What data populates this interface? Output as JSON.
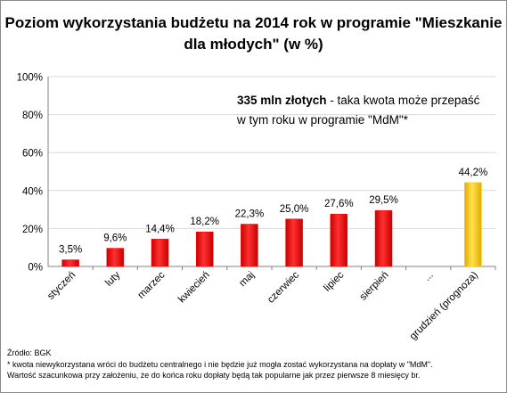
{
  "title": "Poziom wykorzystania budżetu na 2014 rok w programie \"Mieszkanie\ndla młodych\" (w %)",
  "annotation": {
    "bold": "335 mln złotych",
    "line1_rest": " - taka kwota może przepaść",
    "line2": "w tym roku w programie  \"MdM\"*"
  },
  "notes": [
    "Źródło: BGK",
    "* kwota niewykorzystana wróci do budżetu centralnego i nie będzie już mogła zostać wykorzystana na dopłaty w \"MdM\".",
    "Wartość szacunkowa przy założeniu, że do końca roku dopłaty będą tak popularne jak przez pierwsze 8 miesięcy br."
  ],
  "colors": {
    "bar": "#ff0000",
    "bar_highlight": "#ffcc00",
    "gridline": "#d9d9d9",
    "axis": "#808080"
  },
  "chart_data": {
    "type": "bar",
    "title": "Poziom wykorzystania budżetu na 2014 rok w programie \"Mieszkanie dla młodych\" (w %)",
    "categories": [
      "styczeń",
      "luty",
      "marzec",
      "kwiecień",
      "maj",
      "czerwiec",
      "lipiec",
      "sierpień",
      "...",
      "grudzień (prognoza)"
    ],
    "values": [
      3.5,
      9.6,
      14.4,
      18.2,
      22.3,
      25.0,
      27.6,
      29.5,
      null,
      44.2
    ],
    "data_labels": [
      "3,5%",
      "9,6%",
      "14,4%",
      "18,2%",
      "22,3%",
      "25,0%",
      "27,6%",
      "29,5%",
      "",
      "44,2%"
    ],
    "highlight": [
      false,
      false,
      false,
      false,
      false,
      false,
      false,
      false,
      false,
      true
    ],
    "yticks": [
      0,
      20,
      40,
      60,
      80,
      100
    ],
    "ytick_labels": [
      "0%",
      "20%",
      "40%",
      "60%",
      "80%",
      "100%"
    ],
    "ylim": [
      0,
      100
    ],
    "xlabel": "",
    "ylabel": "",
    "grid": true,
    "legend": "none"
  }
}
